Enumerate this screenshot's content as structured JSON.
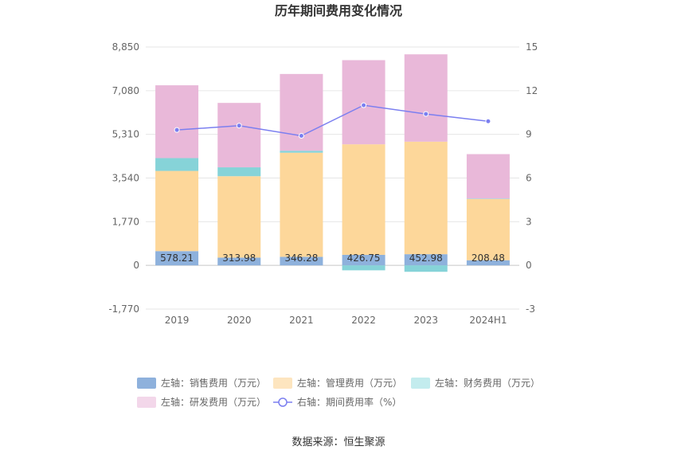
{
  "chart_data": {
    "type": "bar",
    "title": "历年期间费用变化情况",
    "categories": [
      "2019",
      "2020",
      "2021",
      "2022",
      "2023",
      "2024H1"
    ],
    "stacked": true,
    "left_axis": {
      "ticks": [
        "8,850",
        "7,080",
        "5,310",
        "3,540",
        "1,770",
        "0",
        "-1,770"
      ],
      "ylim": [
        -1770,
        8850
      ]
    },
    "right_axis": {
      "ticks": [
        "15",
        "12",
        "9",
        "6",
        "3",
        "0",
        "-3"
      ],
      "ylim": [
        -3,
        15
      ]
    },
    "series": [
      {
        "name": "左轴：销售费用（万元）",
        "type": "bar",
        "axis": "left",
        "color": "#8eb1dc",
        "values": [
          578.21,
          313.98,
          346.28,
          426.75,
          452.98,
          208.48
        ],
        "labels": [
          "578.21",
          "313.98",
          "346.28",
          "426.75",
          "452.98",
          "208.48"
        ]
      },
      {
        "name": "左轴：管理费用（万元）",
        "type": "bar",
        "axis": "left",
        "color": "#fdd79a",
        "values": [
          3250,
          3300,
          4220,
          4480,
          4560,
          2480
        ]
      },
      {
        "name": "左轴：财务费用（万元）",
        "type": "bar",
        "axis": "left",
        "color": "#86d3d8",
        "values": [
          520,
          360,
          80,
          -200,
          -260,
          20
        ]
      },
      {
        "name": "左轴：研发费用（万元）",
        "type": "bar",
        "axis": "left",
        "color": "#e9b8d9",
        "values": [
          2950,
          2610,
          3110,
          3410,
          3540,
          1800
        ]
      },
      {
        "name": "右轴：期间费用率（%）",
        "type": "line",
        "axis": "right",
        "color": "#7b7ff0",
        "values": [
          9.3,
          9.6,
          8.9,
          11.0,
          10.4,
          9.9
        ]
      }
    ],
    "legend_position": "bottom",
    "grid": true
  },
  "source_text": "数据来源：恒生聚源"
}
